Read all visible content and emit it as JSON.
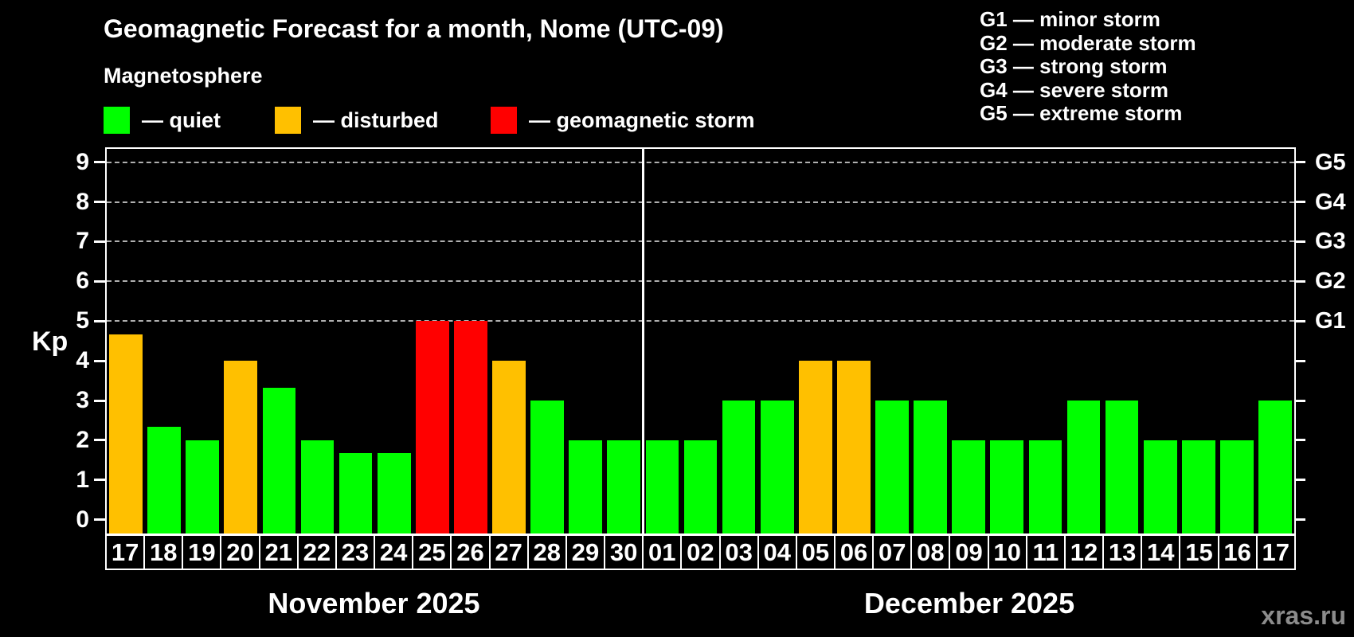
{
  "title": "Geomagnetic Forecast for a month, Nome (UTC-09)",
  "subtitle": "Magnetosphere",
  "watermark": "xras.ru",
  "colors": {
    "quiet": "#00ff00",
    "disturbed": "#ffc000",
    "storm": "#ff0000",
    "background": "#000000",
    "frame": "#ffffff",
    "grid": "#b0b0b0",
    "watermark_color": "#8c8c8c"
  },
  "legend": [
    {
      "status": "quiet",
      "label": "— quiet"
    },
    {
      "status": "disturbed",
      "label": "— disturbed"
    },
    {
      "status": "storm",
      "label": "— geomagnetic storm"
    }
  ],
  "g_legend": {
    "lines": [
      "G1 — minor storm",
      "G2 — moderate storm",
      "G3 — strong storm",
      "G4 — severe storm",
      "G5 — extreme storm"
    ]
  },
  "y_axis": {
    "label": "Kp",
    "ticks": [
      0,
      1,
      2,
      3,
      4,
      5,
      6,
      7,
      8,
      9
    ]
  },
  "right_axis": {
    "g_ticks": [
      {
        "kp": 5,
        "label": "G1"
      },
      {
        "kp": 6,
        "label": "G2"
      },
      {
        "kp": 7,
        "label": "G3"
      },
      {
        "kp": 8,
        "label": "G4"
      },
      {
        "kp": 9,
        "label": "G5"
      }
    ]
  },
  "chart_data": {
    "type": "bar",
    "title": "Geomagnetic Forecast for a month, Nome (UTC-09)",
    "subtitle": "Magnetosphere",
    "xlabel": "",
    "ylabel": "Kp",
    "ylim": [
      0,
      9
    ],
    "grid": "horizontal dashed lines at Kp 5,6,7,8,9 corresponding to G1–G5",
    "legend_position": "top-left",
    "months": [
      {
        "name": "November 2025",
        "days": [
          "17",
          "18",
          "19",
          "20",
          "21",
          "22",
          "23",
          "24",
          "25",
          "26",
          "27",
          "28",
          "29",
          "30"
        ],
        "kp": [
          4.67,
          2.33,
          2,
          4,
          3.33,
          2,
          1.67,
          1.67,
          5,
          5,
          4,
          3,
          2,
          2
        ],
        "status": [
          "disturbed",
          "quiet",
          "quiet",
          "disturbed",
          "quiet",
          "quiet",
          "quiet",
          "quiet",
          "storm",
          "storm",
          "disturbed",
          "quiet",
          "quiet",
          "quiet"
        ]
      },
      {
        "name": "December 2025",
        "days": [
          "01",
          "02",
          "03",
          "04",
          "05",
          "06",
          "07",
          "08",
          "09",
          "10",
          "11",
          "12",
          "13",
          "14",
          "15",
          "16",
          "17"
        ],
        "kp": [
          2,
          2,
          3,
          3,
          4,
          4,
          3,
          3,
          2,
          2,
          2,
          3,
          3,
          2,
          2,
          2,
          3
        ],
        "status": [
          "quiet",
          "quiet",
          "quiet",
          "quiet",
          "disturbed",
          "disturbed",
          "quiet",
          "quiet",
          "quiet",
          "quiet",
          "quiet",
          "quiet",
          "quiet",
          "quiet",
          "quiet",
          "quiet",
          "quiet"
        ]
      }
    ]
  }
}
